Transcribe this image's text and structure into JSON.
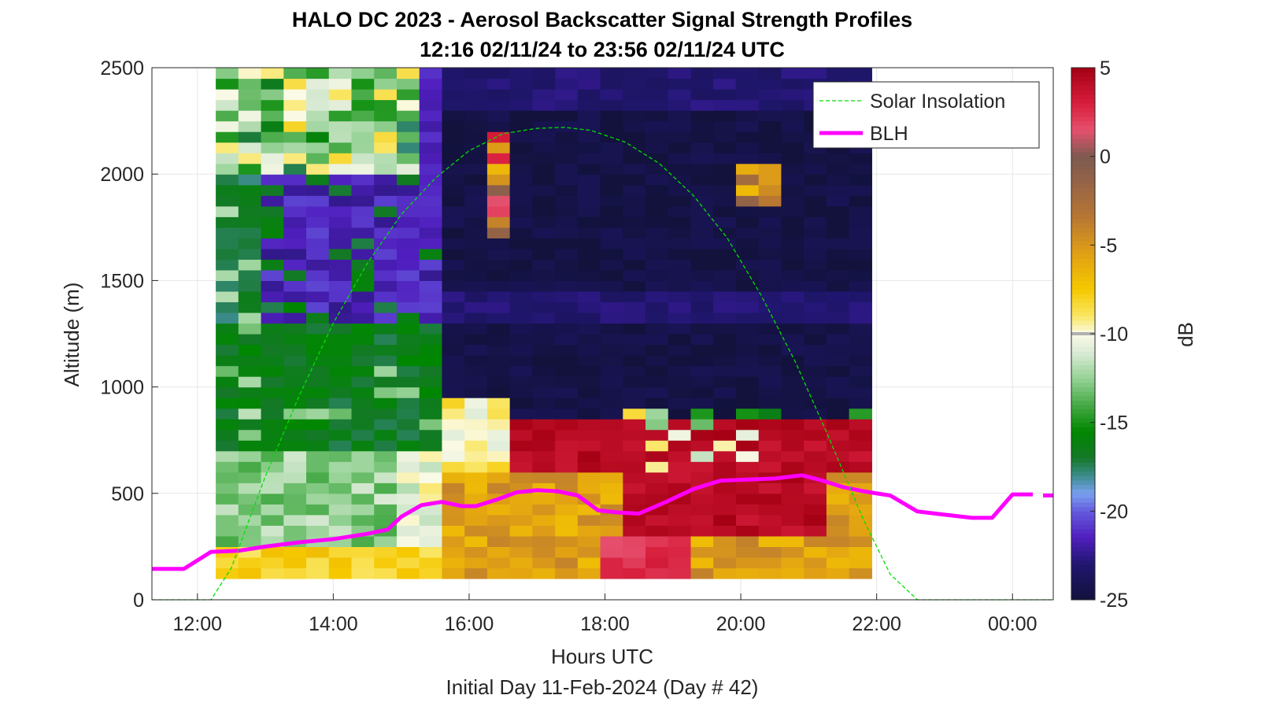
{
  "chart_data": {
    "type": "heatmap",
    "title": "HALO DC 2023 - Aerosol Backscatter Signal Strength Profiles",
    "subtitle": "12:16 02/11/24 to 23:56 02/11/24  UTC",
    "xlabel": "Hours UTC",
    "xlabel2": "Initial Day 11-Feb-2024 (Day # 42)",
    "ylabel": "Altitude (m)",
    "colorbar_label": "dB",
    "xlim": [
      11.33,
      24.6
    ],
    "ylim": [
      0,
      2500
    ],
    "x_ticks": [
      "12:00",
      "14:00",
      "16:00",
      "18:00",
      "20:00",
      "22:00",
      "00:00"
    ],
    "x_tick_values": [
      12,
      14,
      16,
      18,
      20,
      22,
      24
    ],
    "y_ticks": [
      "0",
      "500",
      "1000",
      "1500",
      "2000",
      "2500"
    ],
    "y_tick_values": [
      0,
      500,
      1000,
      1500,
      2000,
      2500
    ],
    "colorbar_ticks": [
      "5",
      "0",
      "-5",
      "-10",
      "-15",
      "-20",
      "-25"
    ],
    "colorbar_tick_values": [
      5,
      0,
      -5,
      -10,
      -15,
      -20,
      -25
    ],
    "clim": [
      -25,
      5
    ],
    "grid": true,
    "legend_position": "top-right",
    "legend": [
      {
        "name": "Solar Insolation",
        "color": "#00e000",
        "style": "dashed"
      },
      {
        "name": "BLH",
        "color": "#ff00ff",
        "style": "solid"
      }
    ],
    "heatmap": {
      "x_start": 12.27,
      "time_step_hours": 0.333,
      "alt_step_m": 50,
      "time_bins": 29,
      "note_levels": "approximate backscatter levels (dB) per time column, top altitude region vs boundary layer"
    },
    "series": [
      {
        "name": "BLH",
        "color": "#ff00ff",
        "x": [
          11.33,
          11.8,
          12.2,
          12.6,
          13.0,
          13.5,
          14.0,
          14.5,
          14.8,
          15.0,
          15.3,
          15.6,
          15.9,
          16.1,
          16.4,
          16.7,
          17.0,
          17.3,
          17.6,
          17.9,
          18.2,
          18.5,
          18.9,
          19.3,
          19.7,
          20.1,
          20.5,
          20.9,
          21.2,
          21.5,
          21.8,
          22.2,
          22.6,
          23.0,
          23.4,
          23.7,
          24.0,
          24.3
        ],
        "y": [
          145,
          145,
          225,
          230,
          250,
          270,
          285,
          310,
          330,
          390,
          445,
          460,
          440,
          440,
          470,
          505,
          515,
          510,
          490,
          420,
          410,
          405,
          460,
          520,
          560,
          565,
          570,
          585,
          560,
          530,
          510,
          490,
          415,
          400,
          385,
          385,
          495,
          495
        ]
      },
      {
        "name": "BLH",
        "color": "#ff00ff",
        "x": [
          24.45,
          24.6
        ],
        "y": [
          490,
          490
        ]
      },
      {
        "name": "Solar Insolation",
        "color": "#00e000",
        "x": [
          11.33,
          12.2,
          12.5,
          13.0,
          13.5,
          14.0,
          14.5,
          15.0,
          15.5,
          16.0,
          16.5,
          17.0,
          17.4,
          17.8,
          18.3,
          18.8,
          19.3,
          19.8,
          20.3,
          20.8,
          21.3,
          21.8,
          22.2,
          22.6,
          23.0,
          24.6
        ],
        "y": [
          0,
          0,
          150,
          580,
          960,
          1300,
          1580,
          1810,
          1980,
          2110,
          2190,
          2215,
          2220,
          2205,
          2150,
          2050,
          1900,
          1700,
          1430,
          1120,
          760,
          380,
          120,
          0,
          0,
          0
        ]
      }
    ]
  }
}
